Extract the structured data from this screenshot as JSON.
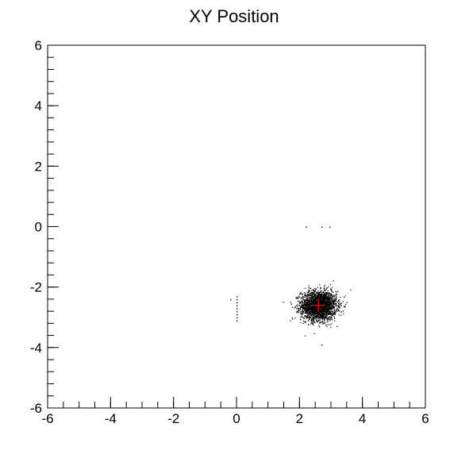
{
  "chart_data": {
    "type": "scatter",
    "title": "XY Position",
    "xlabel": "",
    "ylabel": "",
    "xlim": [
      -6,
      6
    ],
    "ylim": [
      -6,
      6
    ],
    "x_ticks": [
      -6,
      -4,
      -2,
      0,
      2,
      4,
      6
    ],
    "y_ticks": [
      -6,
      -4,
      -2,
      0,
      2,
      4,
      6
    ],
    "x_minor_step": 0.5,
    "y_minor_step": 0.4,
    "grid": false,
    "legend": "none",
    "colors": {
      "points": "#000000",
      "marker": "#ff0000",
      "frame": "#000000",
      "background": "#ffffff"
    },
    "series": [
      {
        "role": "dense-cluster",
        "center": [
          2.6,
          -2.6
        ],
        "spread_x": 0.28,
        "spread_y": 0.24,
        "color": "#000000"
      },
      {
        "role": "sparse-points",
        "points": [
          [
            0.0,
            -2.3
          ],
          [
            0.0,
            -2.4
          ],
          [
            0.0,
            -2.5
          ],
          [
            0.0,
            -2.6
          ],
          [
            0.0,
            -2.7
          ],
          [
            0.0,
            -2.8
          ],
          [
            0.0,
            -2.9
          ],
          [
            0.0,
            -3.0
          ],
          [
            0.0,
            -3.1
          ],
          [
            -0.2,
            -2.4
          ],
          [
            2.2,
            0.0
          ],
          [
            2.7,
            0.0
          ],
          [
            2.95,
            0.0
          ],
          [
            2.7,
            -3.9
          ]
        ],
        "color": "#000000"
      },
      {
        "role": "mean-marker",
        "x": 2.6,
        "y": -2.6,
        "color": "#ff0000"
      }
    ]
  }
}
